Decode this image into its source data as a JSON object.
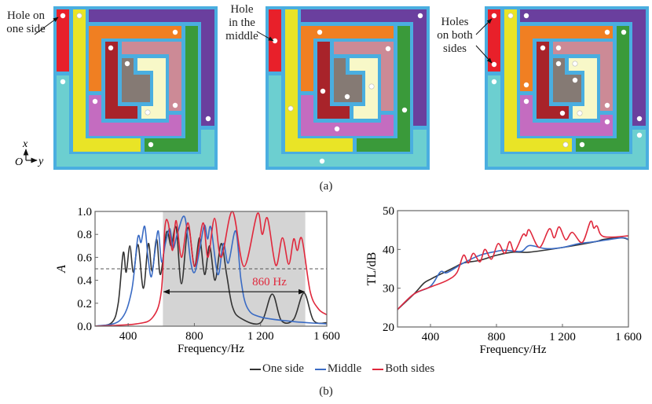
{
  "panel_a": {
    "caption": "(a)",
    "diagrams": [
      {
        "label_lines": [
          "Hole on",
          "one side"
        ]
      },
      {
        "label_lines": [
          "Hole",
          "in the",
          "middle"
        ]
      },
      {
        "label_lines": [
          "Holes",
          "on both",
          "sides"
        ]
      }
    ],
    "axes": {
      "x": "x",
      "y": "y",
      "origin": "O"
    },
    "colors": {
      "frame": "#4aaee0",
      "red": "#e8202a",
      "yellow": "#e9e426",
      "purple": "#6a3f9e",
      "orange": "#f07f22",
      "green": "#3a9a3a",
      "orchid": "#c46cc0",
      "pink": "#cc8a96",
      "darkred": "#a8232a",
      "gray": "#857a74",
      "lightyellow": "#f8f8c8",
      "cyan": "#6ccfd0"
    }
  },
  "panel_b": {
    "caption": "(b)"
  },
  "legend": [
    {
      "name": "One side",
      "color": "#333333"
    },
    {
      "name": "Middle",
      "color": "#3a6bc4"
    },
    {
      "name": "Both sides",
      "color": "#e0283c"
    }
  ],
  "chart_data": [
    {
      "type": "line",
      "xlabel": "Frequency/Hz",
      "ylabel": "A",
      "xlim": [
        200,
        1600
      ],
      "ylim": [
        0,
        1
      ],
      "xticks": [
        400,
        800,
        1200,
        1600
      ],
      "xtick_labels": [
        "400",
        "800",
        "1 200",
        "1 600"
      ],
      "yticks": [
        0,
        0.2,
        0.4,
        0.6,
        0.8,
        1.0
      ],
      "ytick_labels": [
        "0.0",
        "0.2",
        "0.4",
        "0.6",
        "0.8",
        "1.0"
      ],
      "reference_line": 0.5,
      "shaded_band": [
        610,
        1470
      ],
      "annotation": {
        "text": "860 Hz",
        "from": 610,
        "to": 1470,
        "y": 0.3,
        "color": "#e0283c"
      },
      "series": [
        {
          "name": "One side",
          "color": "#333333",
          "points": [
            [
              200,
              0
            ],
            [
              300,
              0.03
            ],
            [
              340,
              0.2
            ],
            [
              370,
              0.64
            ],
            [
              388,
              0.47
            ],
            [
              410,
              0.7
            ],
            [
              432,
              0.47
            ],
            [
              460,
              0.71
            ],
            [
              492,
              0.33
            ],
            [
              522,
              0.72
            ],
            [
              545,
              0.48
            ],
            [
              572,
              0.76
            ],
            [
              595,
              0.45
            ],
            [
              632,
              0.82
            ],
            [
              660,
              0.7
            ],
            [
              690,
              0.86
            ],
            [
              722,
              0.37
            ],
            [
              762,
              0.86
            ],
            [
              800,
              0.52
            ],
            [
              832,
              0.77
            ],
            [
              862,
              0.45
            ],
            [
              892,
              0.7
            ],
            [
              925,
              0.4
            ],
            [
              962,
              0.72
            ],
            [
              995,
              0.45
            ],
            [
              1030,
              0.17
            ],
            [
              1080,
              0.07
            ],
            [
              1200,
              0.03
            ],
            [
              1270,
              0.28
            ],
            [
              1325,
              0.05
            ],
            [
              1400,
              0.06
            ],
            [
              1462,
              0.29
            ],
            [
              1520,
              0.05
            ],
            [
              1600,
              0.03
            ]
          ]
        },
        {
          "name": "Middle",
          "color": "#3a6bc4",
          "points": [
            [
              200,
              0
            ],
            [
              350,
              0.05
            ],
            [
              420,
              0.3
            ],
            [
              458,
              0.77
            ],
            [
              478,
              0.73
            ],
            [
              500,
              0.87
            ],
            [
              520,
              0.6
            ],
            [
              540,
              0.43
            ],
            [
              562,
              0.65
            ],
            [
              582,
              0.83
            ],
            [
              602,
              0.56
            ],
            [
              625,
              0.72
            ],
            [
              652,
              0.85
            ],
            [
              672,
              0.68
            ],
            [
              700,
              0.82
            ],
            [
              742,
              0.95
            ],
            [
              778,
              0.56
            ],
            [
              802,
              0.47
            ],
            [
              830,
              0.65
            ],
            [
              860,
              0.88
            ],
            [
              880,
              0.76
            ],
            [
              900,
              0.86
            ],
            [
              942,
              0.45
            ],
            [
              975,
              0.72
            ],
            [
              1005,
              0.55
            ],
            [
              1050,
              0.83
            ],
            [
              1082,
              0.4
            ],
            [
              1120,
              0.16
            ],
            [
              1200,
              0.08
            ],
            [
              1400,
              0.04
            ],
            [
              1600,
              0.02
            ]
          ]
        },
        {
          "name": "Both sides",
          "color": "#e0283c",
          "points": [
            [
              200,
              0
            ],
            [
              450,
              0.02
            ],
            [
              550,
              0.08
            ],
            [
              600,
              0.3
            ],
            [
              622,
              0.86
            ],
            [
              642,
              0.9
            ],
            [
              668,
              0.66
            ],
            [
              690,
              0.92
            ],
            [
              722,
              0.6
            ],
            [
              762,
              0.9
            ],
            [
              802,
              0.52
            ],
            [
              852,
              0.9
            ],
            [
              882,
              0.6
            ],
            [
              922,
              0.94
            ],
            [
              962,
              0.6
            ],
            [
              1030,
              1.0
            ],
            [
              1100,
              0.52
            ],
            [
              1180,
              0.98
            ],
            [
              1210,
              0.8
            ],
            [
              1242,
              0.94
            ],
            [
              1292,
              0.53
            ],
            [
              1332,
              0.77
            ],
            [
              1370,
              0.54
            ],
            [
              1400,
              0.76
            ],
            [
              1422,
              0.66
            ],
            [
              1450,
              0.76
            ],
            [
              1500,
              0.3
            ],
            [
              1550,
              0.15
            ],
            [
              1600,
              0.1
            ]
          ]
        }
      ]
    },
    {
      "type": "line",
      "xlabel": "Frequency/Hz",
      "ylabel": "TL/dB",
      "xlim": [
        200,
        1600
      ],
      "ylim": [
        20,
        50
      ],
      "xticks": [
        400,
        800,
        1200,
        1600
      ],
      "xtick_labels": [
        "400",
        "800",
        "1 200",
        "1 600"
      ],
      "yticks": [
        20,
        30,
        40,
        50
      ],
      "ytick_labels": [
        "20",
        "30",
        "40",
        "50"
      ],
      "series": [
        {
          "name": "One side",
          "color": "#333333",
          "points": [
            [
              200,
              24.5
            ],
            [
              300,
              28.5
            ],
            [
              360,
              31.3
            ],
            [
              400,
              32.3
            ],
            [
              440,
              33.2
            ],
            [
              480,
              34
            ],
            [
              550,
              35.5
            ],
            [
              600,
              36.5
            ],
            [
              700,
              37.2
            ],
            [
              800,
              38.5
            ],
            [
              900,
              39.3
            ],
            [
              1000,
              39.3
            ],
            [
              1200,
              40.5
            ],
            [
              1400,
              42
            ],
            [
              1450,
              42.6
            ],
            [
              1560,
              43
            ],
            [
              1600,
              42.5
            ]
          ]
        },
        {
          "name": "Middle",
          "color": "#3a6bc4",
          "points": [
            [
              200,
              24.5
            ],
            [
              300,
              28.5
            ],
            [
              400,
              30.5
            ],
            [
              460,
              34.2
            ],
            [
              500,
              34
            ],
            [
              600,
              36.5
            ],
            [
              700,
              38.5
            ],
            [
              800,
              39.5
            ],
            [
              850,
              39.8
            ],
            [
              950,
              39.5
            ],
            [
              1000,
              41
            ],
            [
              1100,
              40.2
            ],
            [
              1200,
              40.5
            ],
            [
              1300,
              41.5
            ],
            [
              1400,
              42
            ],
            [
              1560,
              43
            ],
            [
              1600,
              42.5
            ]
          ]
        },
        {
          "name": "Both sides",
          "color": "#e0283c",
          "points": [
            [
              200,
              24.5
            ],
            [
              300,
              28.5
            ],
            [
              400,
              30.3
            ],
            [
              500,
              32
            ],
            [
              560,
              34
            ],
            [
              600,
              38.5
            ],
            [
              630,
              36.5
            ],
            [
              660,
              39
            ],
            [
              700,
              36.8
            ],
            [
              730,
              40
            ],
            [
              770,
              37.5
            ],
            [
              810,
              41.5
            ],
            [
              850,
              39
            ],
            [
              880,
              42
            ],
            [
              910,
              39.5
            ],
            [
              960,
              43.8
            ],
            [
              980,
              43.5
            ],
            [
              1000,
              45
            ],
            [
              1060,
              40.5
            ],
            [
              1120,
              45.3
            ],
            [
              1150,
              43
            ],
            [
              1180,
              45.8
            ],
            [
              1220,
              42.5
            ],
            [
              1260,
              44.4
            ],
            [
              1320,
              41.8
            ],
            [
              1370,
              47.2
            ],
            [
              1390,
              45.5
            ],
            [
              1410,
              46
            ],
            [
              1450,
              43.3
            ],
            [
              1600,
              43.5
            ]
          ]
        }
      ]
    }
  ]
}
